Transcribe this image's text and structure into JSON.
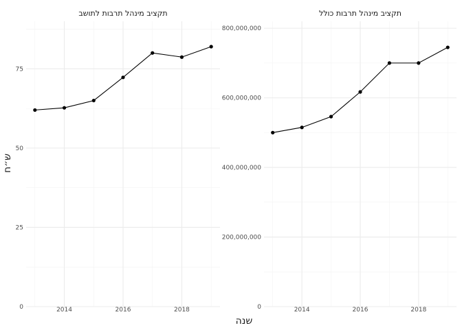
{
  "chart_data": [
    {
      "type": "line",
      "title": "תקציב מינהל תרבות לתושב",
      "x": [
        2013,
        2014,
        2015,
        2016,
        2017,
        2018,
        2019
      ],
      "y": [
        62,
        62.7,
        65,
        72.3,
        80,
        78.7,
        82
      ],
      "xlim": [
        2012.7,
        2019.3
      ],
      "ylim": [
        0,
        90
      ],
      "x_breaks": [
        2014,
        2016,
        2018
      ],
      "y_breaks": [
        0,
        25,
        50,
        75
      ],
      "x_tick_labels": [
        "2014",
        "2016",
        "2018"
      ],
      "y_tick_labels": [
        "0",
        "25",
        "50",
        "75"
      ],
      "grid": true
    },
    {
      "type": "line",
      "title": "תקציב מינהל תרבות כולל",
      "x": [
        2013,
        2014,
        2015,
        2016,
        2017,
        2018,
        2019
      ],
      "y": [
        500000000,
        515000000,
        546000000,
        617000000,
        700000000,
        700000000,
        745000000
      ],
      "xlim": [
        2012.7,
        2019.3
      ],
      "ylim": [
        0,
        820000000
      ],
      "x_breaks": [
        2014,
        2016,
        2018
      ],
      "y_breaks": [
        0,
        200000000,
        400000000,
        600000000,
        800000000
      ],
      "x_tick_labels": [
        "2014",
        "2016",
        "2018"
      ],
      "y_tick_labels": [
        "0",
        "200,000,000",
        "400,000,000",
        "600,000,000",
        "800,000,000"
      ],
      "grid": true
    }
  ],
  "axes": {
    "xlabel": "שנה",
    "ylabel": "ש״ח"
  }
}
